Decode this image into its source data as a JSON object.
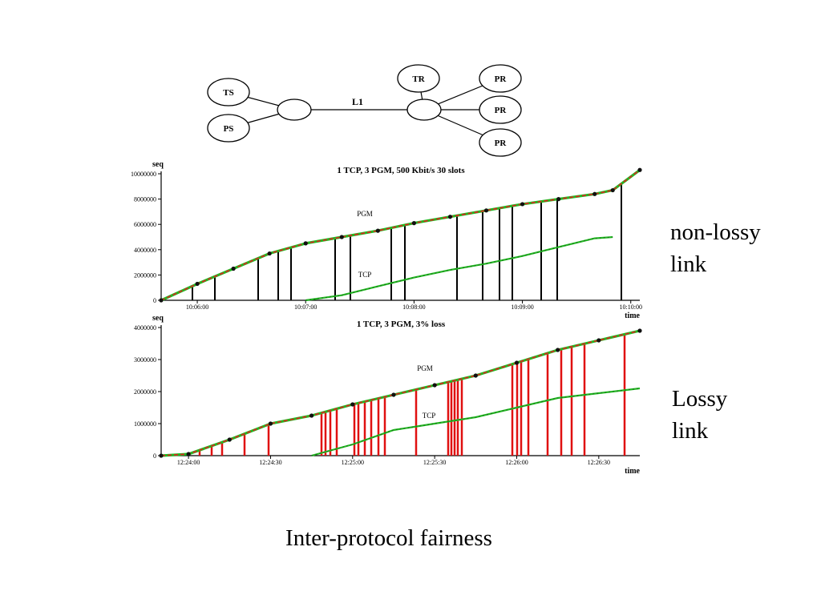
{
  "topology": {
    "nodes": [
      {
        "id": "ts",
        "label": "TS"
      },
      {
        "id": "ps",
        "label": "PS"
      },
      {
        "id": "tr",
        "label": "TR"
      },
      {
        "id": "pr1",
        "label": "PR"
      },
      {
        "id": "pr2",
        "label": "PR"
      },
      {
        "id": "pr3",
        "label": "PR"
      }
    ],
    "link_label": "L1"
  },
  "side_labels": {
    "top_line1": "non-lossy",
    "top_line2": "link",
    "bottom_line1": "Lossy",
    "bottom_line2": "link"
  },
  "caption": "Inter-protocol fairness",
  "colors": {
    "pgm_line": "#e32020",
    "pgm_line_green": "#22b822",
    "tcp_line": "#22b822",
    "nak_top": "#000000",
    "nak_bottom": "#e01010"
  },
  "chart_data": [
    {
      "type": "line",
      "title": "1 TCP, 3 PGM, 500 Kbit/s 30 slots",
      "ylabel": "seq",
      "xlabel": "time",
      "ylim": [
        0,
        10000000
      ],
      "xlim": [
        "10:05:40",
        "10:10:05"
      ],
      "y_ticks": [
        "0",
        "2000000",
        "4000000",
        "6000000",
        "8000000",
        "10000000"
      ],
      "x_ticks": [
        "10:06:00",
        "10:07:00",
        "10:08:00",
        "10:09:00",
        "10:10:00"
      ],
      "series": [
        {
          "name": "PGM",
          "points": [
            [
              "10:05:40",
              0
            ],
            [
              "10:06:00",
              1300000
            ],
            [
              "10:06:20",
              2500000
            ],
            [
              "10:06:40",
              3700000
            ],
            [
              "10:07:00",
              4500000
            ],
            [
              "10:07:20",
              5000000
            ],
            [
              "10:07:40",
              5500000
            ],
            [
              "10:08:00",
              6100000
            ],
            [
              "10:08:20",
              6600000
            ],
            [
              "10:08:40",
              7100000
            ],
            [
              "10:09:00",
              7600000
            ],
            [
              "10:09:20",
              8000000
            ],
            [
              "10:09:40",
              8400000
            ],
            [
              "10:09:50",
              8700000
            ],
            [
              "10:10:05",
              10300000
            ]
          ]
        },
        {
          "name": "TCP",
          "points": [
            [
              "10:07:00",
              0
            ],
            [
              "10:07:20",
              400000
            ],
            [
              "10:07:40",
              1100000
            ],
            [
              "10:08:00",
              1800000
            ],
            [
              "10:08:20",
              2400000
            ],
            [
              "10:08:40",
              2900000
            ],
            [
              "10:09:00",
              3500000
            ],
            [
              "10:09:20",
              4200000
            ],
            [
              "10:09:40",
              4900000
            ],
            [
              "10:09:50",
              5000000
            ]
          ]
        }
      ],
      "annotations": [
        "PGM",
        "TCP"
      ],
      "grid": false,
      "legend": "none"
    },
    {
      "type": "line",
      "title": "1 TCP, 3 PGM, 3% loss",
      "ylabel": "seq",
      "xlabel": "time",
      "ylim": [
        0,
        4000000
      ],
      "xlim": [
        "12:23:50",
        "12:26:45"
      ],
      "y_ticks": [
        "0",
        "1000000",
        "2000000",
        "3000000",
        "4000000"
      ],
      "x_ticks": [
        "12:24:00",
        "12:24:30",
        "12:25:00",
        "12:25:30",
        "12:26:00",
        "12:26:30"
      ],
      "series": [
        {
          "name": "PGM",
          "points": [
            [
              "12:23:50",
              0
            ],
            [
              "12:24:00",
              50000
            ],
            [
              "12:24:15",
              500000
            ],
            [
              "12:24:30",
              1000000
            ],
            [
              "12:24:45",
              1250000
            ],
            [
              "12:25:00",
              1600000
            ],
            [
              "12:25:15",
              1900000
            ],
            [
              "12:25:30",
              2200000
            ],
            [
              "12:25:45",
              2500000
            ],
            [
              "12:26:00",
              2900000
            ],
            [
              "12:26:15",
              3300000
            ],
            [
              "12:26:30",
              3600000
            ],
            [
              "12:26:45",
              3900000
            ]
          ]
        },
        {
          "name": "TCP",
          "points": [
            [
              "12:24:45",
              0
            ],
            [
              "12:25:00",
              350000
            ],
            [
              "12:25:15",
              800000
            ],
            [
              "12:25:30",
              1000000
            ],
            [
              "12:25:45",
              1200000
            ],
            [
              "12:26:00",
              1500000
            ],
            [
              "12:26:15",
              1800000
            ],
            [
              "12:26:30",
              1950000
            ],
            [
              "12:26:45",
              2100000
            ]
          ]
        }
      ],
      "annotations": [
        "PGM",
        "TCP"
      ],
      "grid": false,
      "legend": "none"
    }
  ]
}
